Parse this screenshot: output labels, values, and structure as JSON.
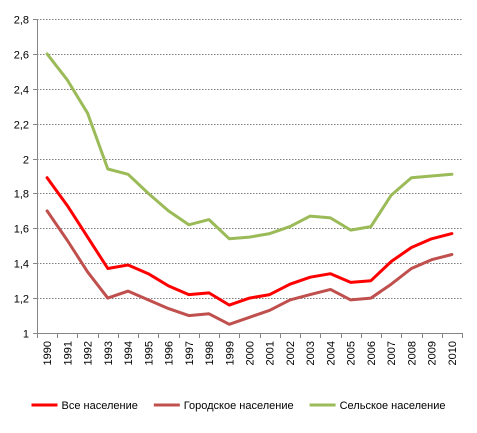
{
  "chart_data": {
    "type": "line",
    "title": "",
    "xlabel": "",
    "ylabel": "",
    "x": [
      "1990",
      "1991",
      "1992",
      "1993",
      "1994",
      "1995",
      "1996",
      "1997",
      "1998",
      "1999",
      "2000",
      "2001",
      "2002",
      "2003",
      "2004",
      "2005",
      "2006",
      "2007",
      "2008",
      "2009",
      "2010"
    ],
    "ylim": [
      1,
      2.8
    ],
    "yticks": [
      "1",
      "1,2",
      "1,4",
      "1,6",
      "1,8",
      "2",
      "2,2",
      "2,4",
      "2,6",
      "2,8"
    ],
    "ytick_values": [
      1,
      1.2,
      1.4,
      1.6,
      1.8,
      2.0,
      2.2,
      2.4,
      2.6,
      2.8
    ],
    "grid": true,
    "legend_position": "bottom",
    "series": [
      {
        "name": "Все население",
        "color": "#ff0000",
        "values": [
          1.89,
          1.73,
          1.55,
          1.37,
          1.39,
          1.34,
          1.27,
          1.22,
          1.23,
          1.16,
          1.2,
          1.22,
          1.28,
          1.32,
          1.34,
          1.29,
          1.3,
          1.41,
          1.49,
          1.54,
          1.57
        ]
      },
      {
        "name": "Городское население",
        "color": "#c0504d",
        "values": [
          1.7,
          1.53,
          1.35,
          1.2,
          1.24,
          1.19,
          1.14,
          1.1,
          1.11,
          1.05,
          1.09,
          1.13,
          1.19,
          1.22,
          1.25,
          1.19,
          1.2,
          1.28,
          1.37,
          1.42,
          1.45
        ]
      },
      {
        "name": "Сельское население",
        "color": "#9bbb59",
        "values": [
          2.6,
          2.45,
          2.26,
          1.94,
          1.91,
          1.8,
          1.7,
          1.62,
          1.65,
          1.54,
          1.55,
          1.57,
          1.61,
          1.67,
          1.66,
          1.59,
          1.61,
          1.79,
          1.89,
          1.9,
          1.91
        ]
      }
    ]
  }
}
